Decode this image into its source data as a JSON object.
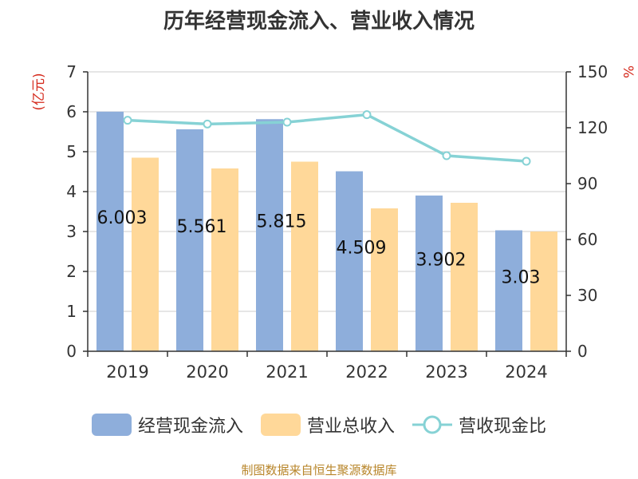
{
  "chart_data": {
    "type": "bar",
    "title": "历年经营现金流入、营业收入情况",
    "categories": [
      "2019",
      "2020",
      "2021",
      "2022",
      "2023",
      "2024"
    ],
    "ylabel_left": "(亿元)",
    "ylabel_right": "%",
    "ylim_left": [
      0,
      7
    ],
    "ylim_right": [
      0,
      150
    ],
    "left_ticks": [
      "0",
      "1",
      "2",
      "3",
      "4",
      "5",
      "6",
      "7"
    ],
    "right_ticks": [
      "0",
      "30",
      "60",
      "90",
      "120",
      "150"
    ],
    "grid": true,
    "legend_position": "bottom",
    "series": [
      {
        "name": "经营现金流入",
        "type": "bar",
        "axis": "left",
        "color": "#8eaedb",
        "values": [
          6.003,
          5.561,
          5.815,
          4.509,
          3.902,
          3.03
        ],
        "labels": [
          "6.003",
          "5.561",
          "5.815",
          "4.509",
          "3.902",
          "3.03"
        ]
      },
      {
        "name": "营业总收入",
        "type": "bar",
        "axis": "left",
        "color": "#ffd899",
        "values": [
          4.85,
          4.58,
          4.75,
          3.58,
          3.72,
          3.0
        ]
      },
      {
        "name": "营收现金比",
        "type": "line",
        "axis": "right",
        "color": "#86d2d5",
        "values": [
          124,
          122,
          123,
          127,
          105,
          102
        ]
      }
    ]
  },
  "source": "制图数据来自恒生聚源数据库"
}
